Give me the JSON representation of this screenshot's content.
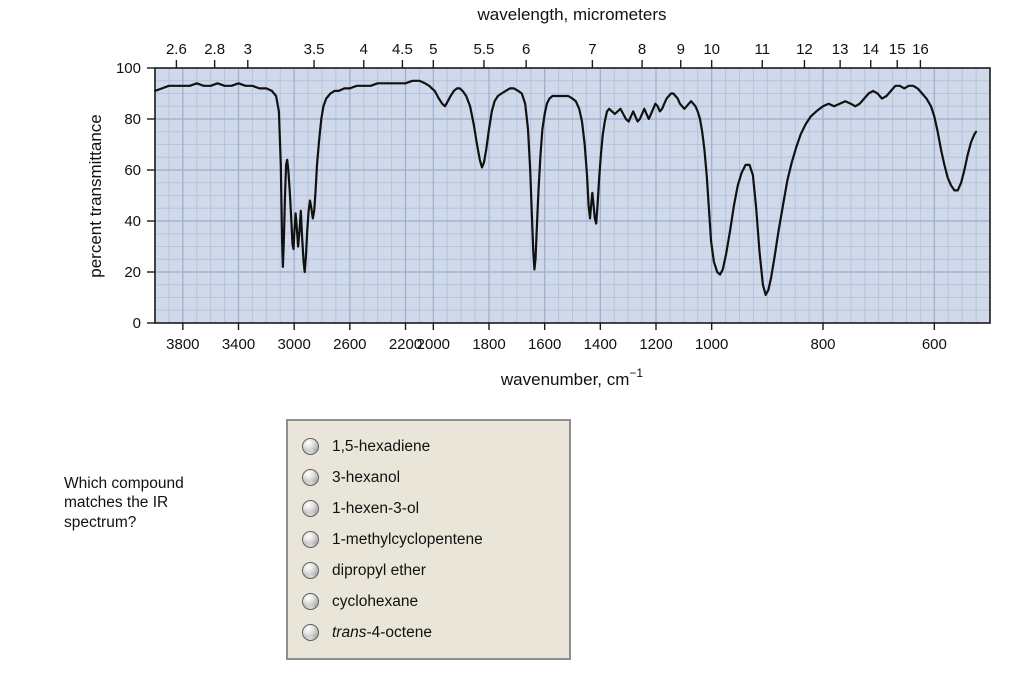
{
  "colors": {
    "plot_bg": "#cfd9ea",
    "grid_minor": "#b6c4dc",
    "grid_major": "#9cafce",
    "frame": "#1a1a1a",
    "curve": "#111111",
    "options_box_bg": "#e9e5d8",
    "options_box_border": "#8f8f8f"
  },
  "chart_data": {
    "type": "line",
    "title": "wavelength, micrometers",
    "xlabel": "wavenumber, cm−1",
    "xlabel_display": {
      "base": "wavenumber, cm",
      "sup": "−1"
    },
    "ylabel": "percent transmittance",
    "ylim": [
      0,
      100
    ],
    "xlim": [
      4000,
      500
    ],
    "x_reversed": true,
    "grid": true,
    "legend": "none",
    "x_scale_segments": [
      [
        4000,
        2000
      ],
      [
        2000,
        1000
      ],
      [
        1000,
        500
      ]
    ],
    "x_scale_note": "piecewise linear; each segment spans one third of plot width",
    "y_ticks": [
      0,
      20,
      40,
      60,
      80,
      100
    ],
    "y_minor_step": 5,
    "x_axis_bottom_ticks": [
      3800,
      3400,
      3000,
      2600,
      2200,
      2000,
      1800,
      1600,
      1400,
      1200,
      1000,
      800,
      600
    ],
    "x_axis_top_wavelength_ticks": [
      "2.6",
      "2.8",
      "3",
      "3.5",
      "4",
      "4.5",
      "5",
      "5.5",
      "6",
      "7",
      "8",
      "9",
      "10",
      "11",
      "12",
      "13",
      "14",
      "15",
      "16"
    ],
    "series": [
      {
        "name": "IR spectrum (percent transmittance vs wavenumber)",
        "points": [
          [
            4000,
            91
          ],
          [
            3950,
            92
          ],
          [
            3900,
            93
          ],
          [
            3850,
            93
          ],
          [
            3800,
            93
          ],
          [
            3750,
            93
          ],
          [
            3700,
            94
          ],
          [
            3650,
            93
          ],
          [
            3600,
            93
          ],
          [
            3550,
            94
          ],
          [
            3500,
            93
          ],
          [
            3450,
            93
          ],
          [
            3400,
            94
          ],
          [
            3350,
            93
          ],
          [
            3300,
            93
          ],
          [
            3250,
            92
          ],
          [
            3200,
            92
          ],
          [
            3160,
            91
          ],
          [
            3130,
            89
          ],
          [
            3110,
            83
          ],
          [
            3096,
            62
          ],
          [
            3087,
            32
          ],
          [
            3081,
            22
          ],
          [
            3074,
            33
          ],
          [
            3066,
            50
          ],
          [
            3058,
            62
          ],
          [
            3050,
            64
          ],
          [
            3042,
            60
          ],
          [
            3032,
            52
          ],
          [
            3022,
            42
          ],
          [
            3012,
            31
          ],
          [
            3005,
            29
          ],
          [
            2998,
            36
          ],
          [
            2990,
            43
          ],
          [
            2982,
            38
          ],
          [
            2972,
            30
          ],
          [
            2962,
            36
          ],
          [
            2952,
            44
          ],
          [
            2942,
            33
          ],
          [
            2932,
            24
          ],
          [
            2924,
            20
          ],
          [
            2916,
            26
          ],
          [
            2906,
            36
          ],
          [
            2896,
            44
          ],
          [
            2886,
            48
          ],
          [
            2876,
            45
          ],
          [
            2866,
            41
          ],
          [
            2856,
            44
          ],
          [
            2846,
            52
          ],
          [
            2836,
            62
          ],
          [
            2820,
            72
          ],
          [
            2805,
            80
          ],
          [
            2790,
            85
          ],
          [
            2770,
            88
          ],
          [
            2740,
            90
          ],
          [
            2710,
            91
          ],
          [
            2680,
            91
          ],
          [
            2640,
            92
          ],
          [
            2600,
            92
          ],
          [
            2550,
            93
          ],
          [
            2500,
            93
          ],
          [
            2450,
            93
          ],
          [
            2400,
            94
          ],
          [
            2350,
            94
          ],
          [
            2300,
            94
          ],
          [
            2250,
            94
          ],
          [
            2200,
            94
          ],
          [
            2150,
            95
          ],
          [
            2100,
            95
          ],
          [
            2060,
            94
          ],
          [
            2030,
            93
          ],
          [
            2010,
            92
          ],
          [
            1995,
            91
          ],
          [
            1980,
            88
          ],
          [
            1968,
            86
          ],
          [
            1958,
            85
          ],
          [
            1948,
            87
          ],
          [
            1938,
            89
          ],
          [
            1926,
            91
          ],
          [
            1915,
            92
          ],
          [
            1905,
            92
          ],
          [
            1895,
            91
          ],
          [
            1882,
            89
          ],
          [
            1868,
            85
          ],
          [
            1855,
            78
          ],
          [
            1843,
            70
          ],
          [
            1833,
            64
          ],
          [
            1825,
            61
          ],
          [
            1818,
            63
          ],
          [
            1810,
            68
          ],
          [
            1800,
            76
          ],
          [
            1790,
            83
          ],
          [
            1780,
            87
          ],
          [
            1768,
            89
          ],
          [
            1755,
            90
          ],
          [
            1740,
            91
          ],
          [
            1725,
            92
          ],
          [
            1710,
            92
          ],
          [
            1695,
            91
          ],
          [
            1682,
            90
          ],
          [
            1670,
            86
          ],
          [
            1660,
            76
          ],
          [
            1652,
            60
          ],
          [
            1646,
            42
          ],
          [
            1641,
            28
          ],
          [
            1637,
            21
          ],
          [
            1633,
            25
          ],
          [
            1628,
            38
          ],
          [
            1622,
            52
          ],
          [
            1615,
            66
          ],
          [
            1608,
            76
          ],
          [
            1600,
            82
          ],
          [
            1592,
            86
          ],
          [
            1583,
            88
          ],
          [
            1572,
            89
          ],
          [
            1560,
            89
          ],
          [
            1545,
            89
          ],
          [
            1530,
            89
          ],
          [
            1515,
            89
          ],
          [
            1500,
            88
          ],
          [
            1488,
            87
          ],
          [
            1476,
            84
          ],
          [
            1466,
            79
          ],
          [
            1456,
            70
          ],
          [
            1448,
            58
          ],
          [
            1442,
            46
          ],
          [
            1437,
            41
          ],
          [
            1433,
            46
          ],
          [
            1429,
            51
          ],
          [
            1425,
            47
          ],
          [
            1420,
            41
          ],
          [
            1415,
            39
          ],
          [
            1410,
            46
          ],
          [
            1404,
            57
          ],
          [
            1398,
            66
          ],
          [
            1391,
            74
          ],
          [
            1384,
            79
          ],
          [
            1376,
            83
          ],
          [
            1368,
            84
          ],
          [
            1358,
            83
          ],
          [
            1348,
            82
          ],
          [
            1338,
            83
          ],
          [
            1328,
            84
          ],
          [
            1318,
            82
          ],
          [
            1308,
            80
          ],
          [
            1298,
            79
          ],
          [
            1290,
            81
          ],
          [
            1282,
            83
          ],
          [
            1274,
            81
          ],
          [
            1266,
            79
          ],
          [
            1258,
            80
          ],
          [
            1250,
            82
          ],
          [
            1242,
            84
          ],
          [
            1234,
            82
          ],
          [
            1226,
            80
          ],
          [
            1218,
            82
          ],
          [
            1210,
            84
          ],
          [
            1202,
            86
          ],
          [
            1194,
            85
          ],
          [
            1186,
            83
          ],
          [
            1178,
            84
          ],
          [
            1170,
            86
          ],
          [
            1162,
            88
          ],
          [
            1154,
            89
          ],
          [
            1146,
            90
          ],
          [
            1138,
            90
          ],
          [
            1130,
            89
          ],
          [
            1122,
            88
          ],
          [
            1114,
            86
          ],
          [
            1106,
            85
          ],
          [
            1098,
            84
          ],
          [
            1090,
            85
          ],
          [
            1082,
            86
          ],
          [
            1074,
            87
          ],
          [
            1066,
            86
          ],
          [
            1058,
            85
          ],
          [
            1050,
            83
          ],
          [
            1042,
            80
          ],
          [
            1034,
            75
          ],
          [
            1026,
            68
          ],
          [
            1018,
            58
          ],
          [
            1010,
            45
          ],
          [
            1002,
            32
          ],
          [
            996,
            24
          ],
          [
            990,
            20
          ],
          [
            985,
            19
          ],
          [
            980,
            21
          ],
          [
            974,
            27
          ],
          [
            967,
            36
          ],
          [
            960,
            46
          ],
          [
            953,
            54
          ],
          [
            946,
            59
          ],
          [
            939,
            62
          ],
          [
            932,
            62
          ],
          [
            926,
            58
          ],
          [
            920,
            45
          ],
          [
            914,
            28
          ],
          [
            908,
            15
          ],
          [
            903,
            11
          ],
          [
            898,
            13
          ],
          [
            893,
            18
          ],
          [
            887,
            26
          ],
          [
            880,
            36
          ],
          [
            872,
            46
          ],
          [
            864,
            56
          ],
          [
            856,
            63
          ],
          [
            848,
            69
          ],
          [
            840,
            74
          ],
          [
            831,
            78
          ],
          [
            822,
            81
          ],
          [
            812,
            83
          ],
          [
            800,
            85
          ],
          [
            790,
            86
          ],
          [
            780,
            85
          ],
          [
            770,
            86
          ],
          [
            760,
            87
          ],
          [
            750,
            86
          ],
          [
            742,
            85
          ],
          [
            734,
            86
          ],
          [
            726,
            88
          ],
          [
            718,
            90
          ],
          [
            710,
            91
          ],
          [
            702,
            90
          ],
          [
            694,
            88
          ],
          [
            686,
            89
          ],
          [
            678,
            91
          ],
          [
            670,
            93
          ],
          [
            662,
            93
          ],
          [
            654,
            92
          ],
          [
            646,
            93
          ],
          [
            638,
            93
          ],
          [
            630,
            92
          ],
          [
            622,
            90
          ],
          [
            614,
            88
          ],
          [
            606,
            85
          ],
          [
            600,
            81
          ],
          [
            594,
            75
          ],
          [
            588,
            68
          ],
          [
            582,
            62
          ],
          [
            576,
            57
          ],
          [
            570,
            54
          ],
          [
            564,
            52
          ],
          [
            558,
            52
          ],
          [
            552,
            55
          ],
          [
            546,
            60
          ],
          [
            540,
            66
          ],
          [
            534,
            71
          ],
          [
            528,
            74
          ],
          [
            525,
            75
          ]
        ]
      }
    ]
  },
  "question": {
    "prompt": "Which compound matches the IR spectrum?",
    "options": [
      {
        "em": "",
        "label": "1,5-hexadiene"
      },
      {
        "em": "",
        "label": "3-hexanol"
      },
      {
        "em": "",
        "label": "1-hexen-3-ol"
      },
      {
        "em": "",
        "label": "1-methylcyclopentene"
      },
      {
        "em": "",
        "label": "dipropyl ether"
      },
      {
        "em": "",
        "label": "cyclohexane"
      },
      {
        "em": "trans",
        "label": "-4-octene"
      }
    ]
  }
}
